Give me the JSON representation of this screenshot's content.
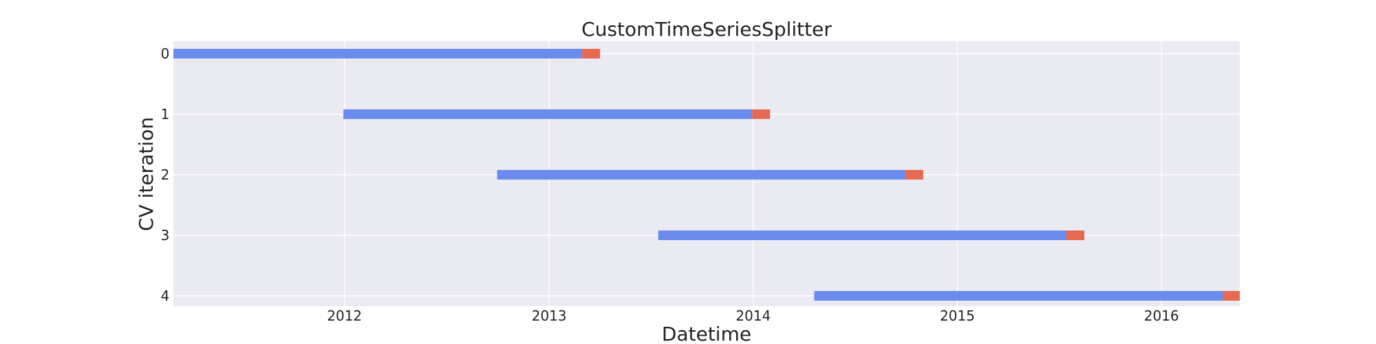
{
  "chart_data": {
    "type": "bar",
    "orientation": "horizontal-timeline",
    "title": "CustomTimeSeriesSplitter",
    "xlabel": "Datetime",
    "ylabel": "CV iteration",
    "grid": true,
    "legend": "none",
    "xlim": [
      "2011-03-01",
      "2016-05-20"
    ],
    "x_ticks": [
      "2012",
      "2013",
      "2014",
      "2015",
      "2016"
    ],
    "y_ticks": [
      "0",
      "1",
      "2",
      "3",
      "4"
    ],
    "series": [
      {
        "color": "#6b8cee",
        "role": "train"
      },
      {
        "color": "#e66a52",
        "role": "test"
      }
    ],
    "iterations": [
      {
        "label": "0",
        "train_start": "2011-03-01",
        "train_end": "2013-03-01",
        "test_end": "2013-04-02"
      },
      {
        "label": "1",
        "train_start": "2011-12-30",
        "train_end": "2013-12-30",
        "test_end": "2014-01-31"
      },
      {
        "label": "2",
        "train_start": "2012-09-30",
        "train_end": "2014-09-30",
        "test_end": "2014-11-01"
      },
      {
        "label": "3",
        "train_start": "2013-07-15",
        "train_end": "2015-07-15",
        "test_end": "2015-08-16"
      },
      {
        "label": "4",
        "train_start": "2014-04-20",
        "train_end": "2016-04-20",
        "test_end": "2016-05-20"
      }
    ]
  }
}
